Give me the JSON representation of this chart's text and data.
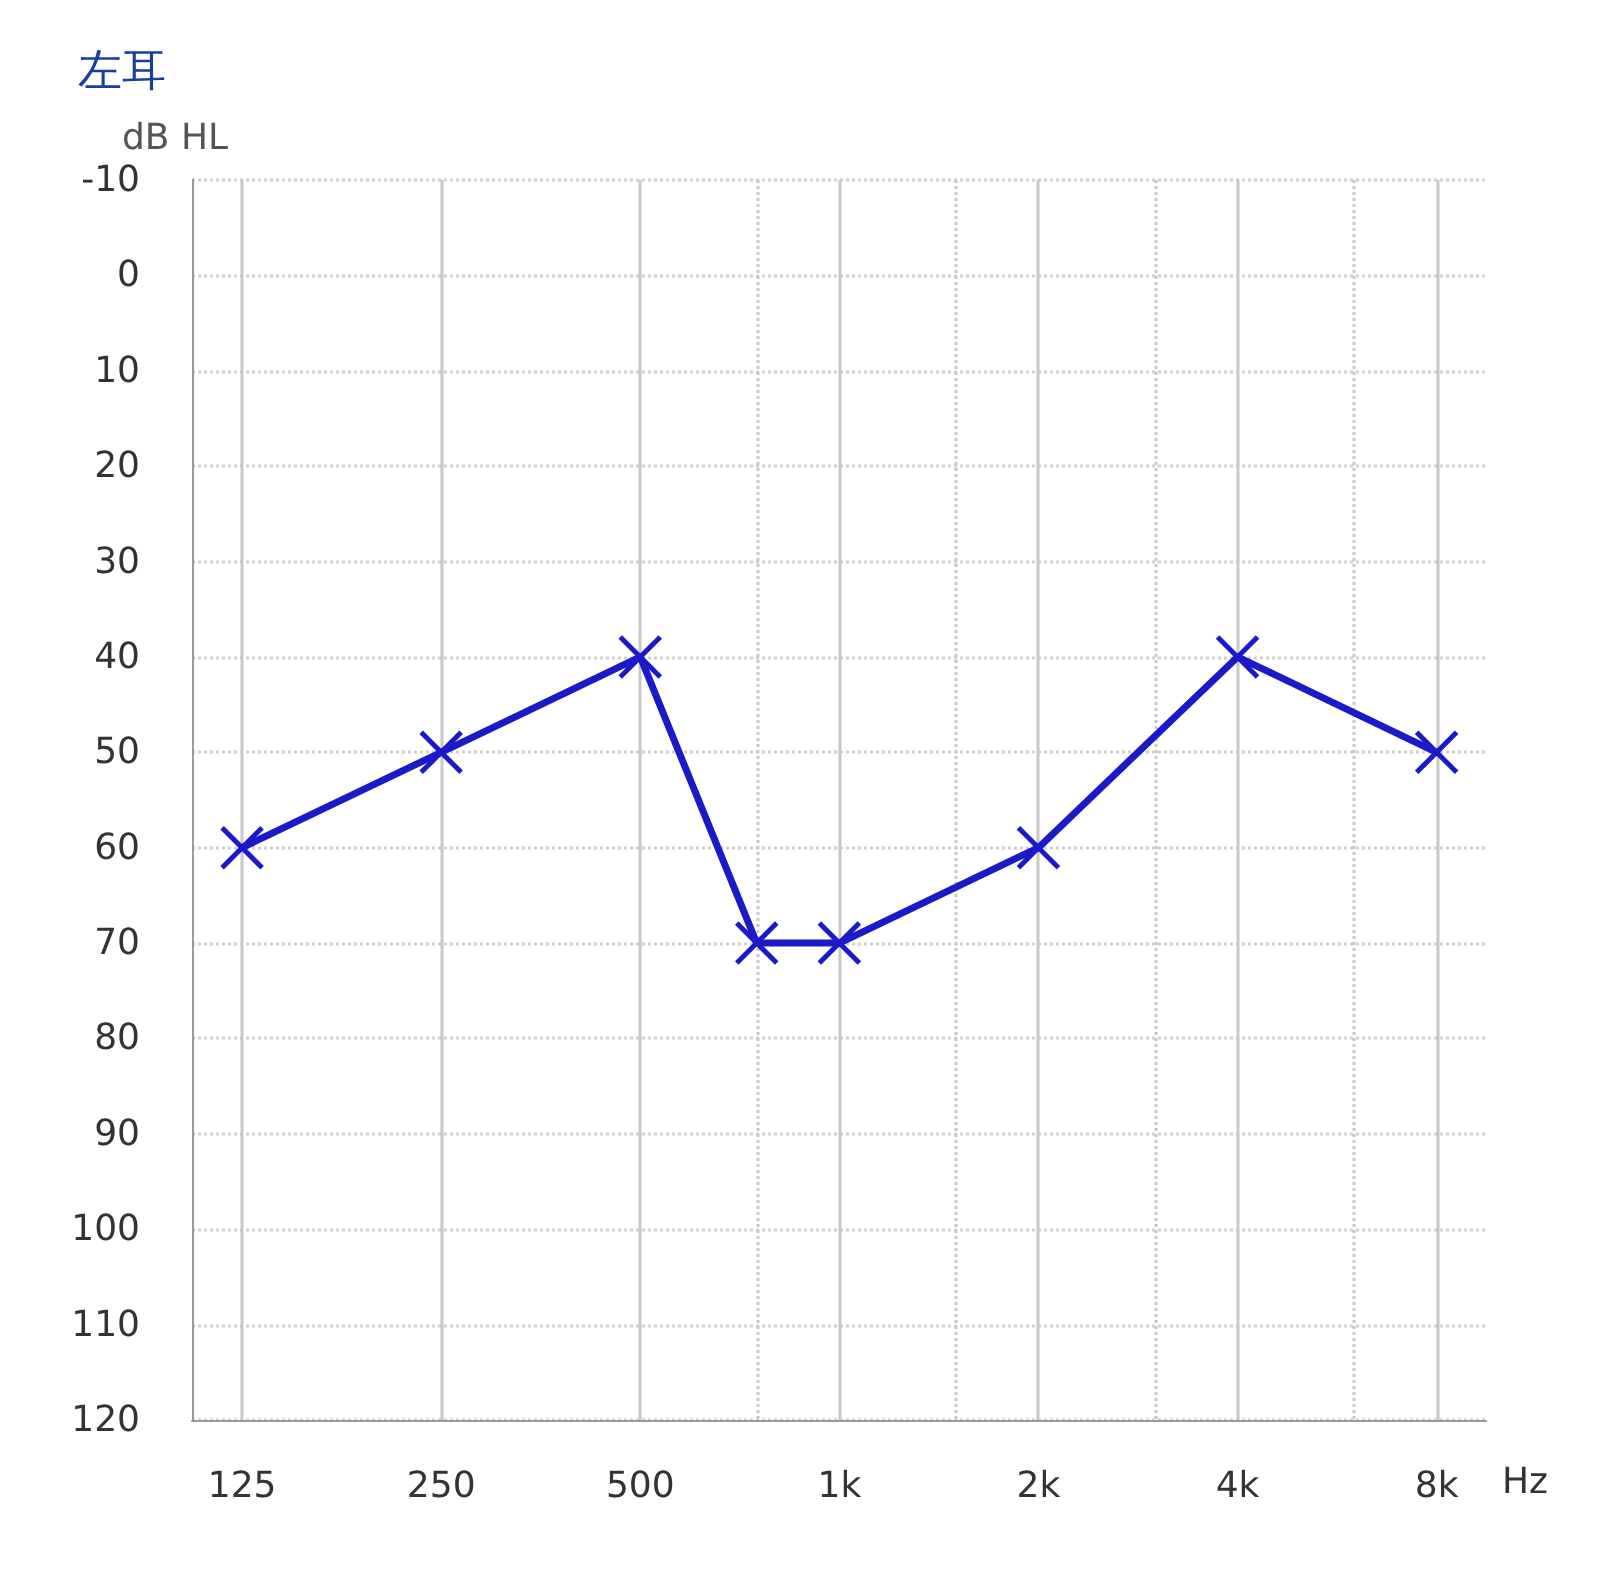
{
  "chart_data": {
    "type": "line",
    "title": "左耳",
    "xlabel": "Hz",
    "ylabel": "dB HL",
    "x": [
      125,
      250,
      500,
      750,
      1000,
      2000,
      4000,
      8000
    ],
    "series": [
      {
        "color": "#1a1ac8",
        "values": [
          60,
          50,
          40,
          70,
          70,
          60,
          40,
          50
        ]
      }
    ],
    "log": "x",
    "xlim": [
      105,
      9500
    ],
    "xticks": [
      125,
      250,
      500,
      {
        "value": 750,
        "label": null
      },
      {
        "value": 1000,
        "label": "1k"
      },
      {
        "value": 1500,
        "label": null
      },
      {
        "value": 2000,
        "label": "2k"
      },
      {
        "value": 3000,
        "label": null
      },
      {
        "value": 4000,
        "label": "4k"
      },
      {
        "value": 6000,
        "label": null
      },
      {
        "value": 8000,
        "label": "8k"
      }
    ],
    "ylim": [
      120,
      -10
    ],
    "yticks": [
      -10,
      0,
      10,
      20,
      30,
      40,
      50,
      60,
      70,
      80,
      90,
      100,
      110,
      120
    ],
    "grid": true,
    "marker": "cross",
    "line_style": "solid"
  }
}
